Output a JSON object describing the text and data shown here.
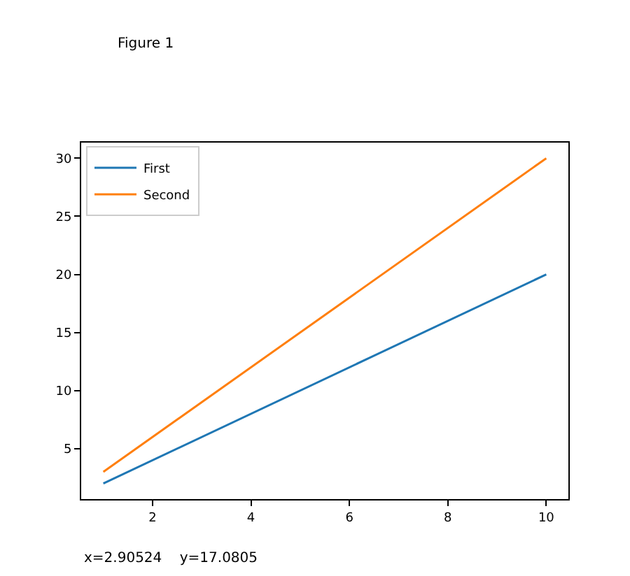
{
  "chart_data": {
    "type": "line",
    "x": [
      1,
      10
    ],
    "series": [
      {
        "name": "First",
        "color": "#1f77b4",
        "values": [
          2,
          20
        ]
      },
      {
        "name": "Second",
        "color": "#ff7f0e",
        "values": [
          3,
          30
        ]
      }
    ],
    "xlim": [
      0.55,
      10.45
    ],
    "ylim": [
      0.65,
      31.35
    ],
    "xticks": [
      2,
      4,
      6,
      8,
      10
    ],
    "yticks": [
      5,
      10,
      15,
      20,
      25,
      30
    ],
    "legend": "top left",
    "marker": "none",
    "line_style": "solid",
    "annotations": [
      "Figure 1",
      "x=2.90524    y=17.0805"
    ]
  }
}
